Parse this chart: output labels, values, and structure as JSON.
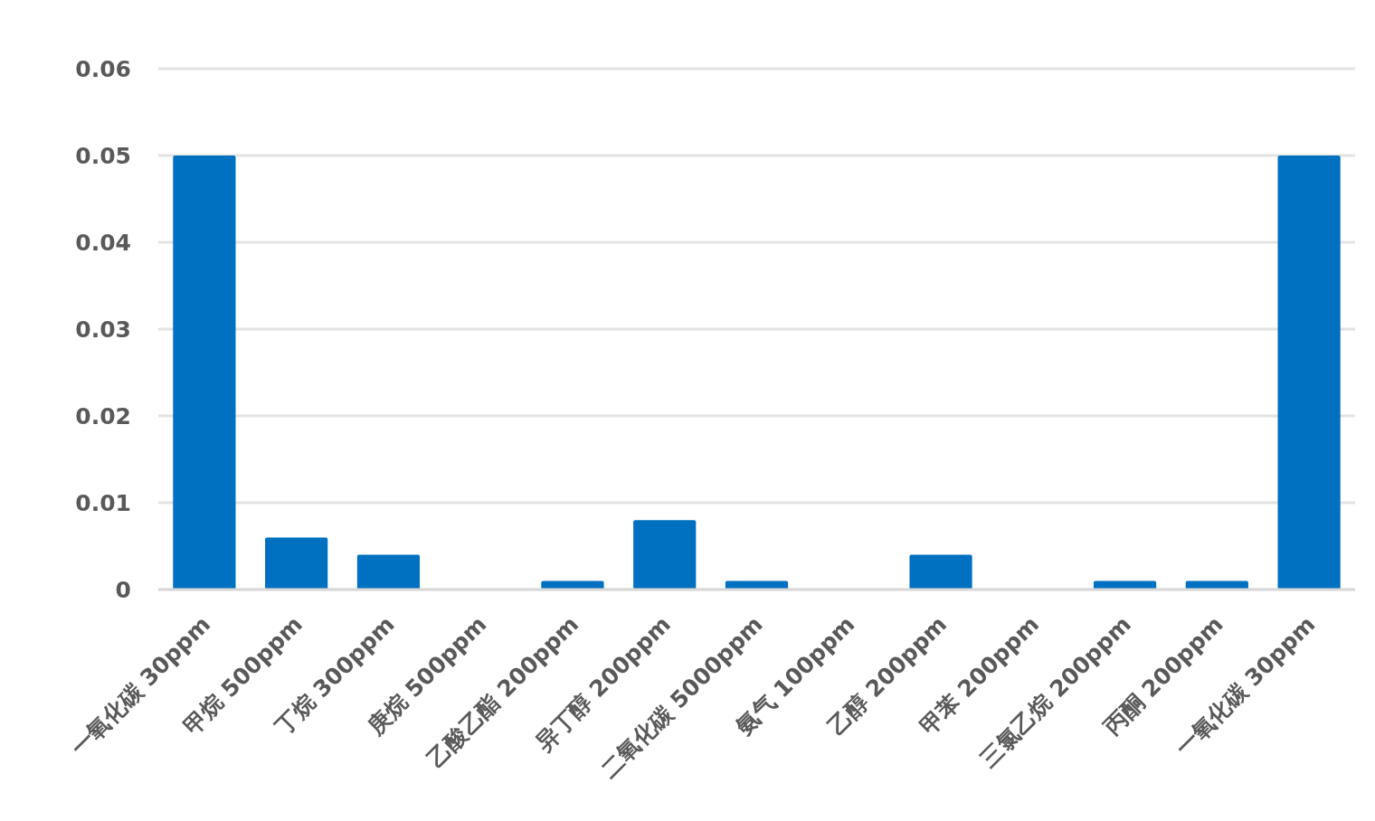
{
  "chart_data": {
    "type": "bar",
    "categories": [
      "一氧化碳 30ppm",
      "甲烷 500ppm",
      "丁烷 300ppm",
      "庚烷 500ppm",
      "乙酸乙酯 200ppm",
      "异丁醇 200ppm",
      "二氧化碳 5000ppm",
      "氨气 100ppm",
      "乙醇 200ppm",
      "甲苯 200ppm",
      "三氯乙烷 200ppm",
      "丙酮 200ppm",
      "一氧化碳 30ppm"
    ],
    "values": [
      0.05,
      0.006,
      0.004,
      0,
      0.001,
      0.008,
      0.001,
      0,
      0.004,
      0,
      0.001,
      0.001,
      0.05
    ],
    "color": "#0070c0",
    "ylim": [
      0,
      0.06
    ],
    "yticks": [
      0,
      0.01,
      0.02,
      0.03,
      0.04,
      0.05,
      0.06
    ],
    "grid": "y"
  }
}
